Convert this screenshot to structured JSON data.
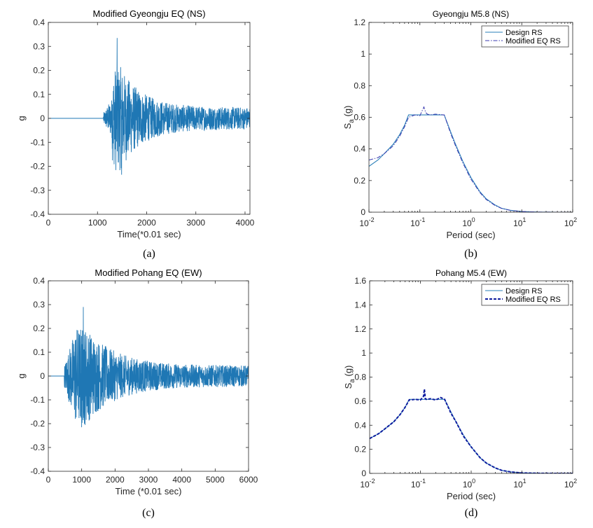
{
  "colors": {
    "signal": "#1f77b4",
    "design": "#2a7fb8",
    "modified_b": "#3b3bb0",
    "modified_d": "#0d1a9e",
    "axis": "#262626"
  },
  "chart_data": [
    {
      "id": "a",
      "type": "line",
      "title": "Modified Gyeongju EQ (NS)",
      "xlabel": "Time(*0.01 sec)",
      "ylabel": "g",
      "caption": "(a)",
      "xlim": [
        0,
        4100
      ],
      "ylim": [
        -0.4,
        0.4
      ],
      "xticks": [
        0,
        1000,
        2000,
        3000,
        4000
      ],
      "xtick_labels": [
        "0",
        "1000",
        "2000",
        "3000",
        "4000"
      ],
      "yticks": [
        -0.4,
        -0.3,
        -0.2,
        -0.1,
        0,
        0.1,
        0.2,
        0.3,
        0.4
      ],
      "ytick_labels": [
        "-0.4",
        "-0.3",
        "-0.2",
        "-0.1",
        "0",
        "0.1",
        "0.2",
        "0.3",
        "0.4"
      ],
      "signal": {
        "start": 1120,
        "end": 4100,
        "peak_pos": 0.335,
        "peak_neg": -0.235,
        "peak_time": 1400,
        "peak_neg_time": 1490
      }
    },
    {
      "id": "b",
      "type": "line",
      "title": "Gyeongju M5.8 (NS)",
      "xlabel": "Period (sec)",
      "ylabel": "S_a (g)",
      "caption": "(b)",
      "xscale": "log",
      "xlim": [
        0.01,
        100
      ],
      "ylim": [
        0,
        1.2
      ],
      "xticks": [
        0.01,
        0.1,
        1,
        10,
        100
      ],
      "xtick_labels": [
        [
          "10",
          "-2"
        ],
        [
          "10",
          "-1"
        ],
        [
          "10",
          "0"
        ],
        [
          "10",
          "1"
        ],
        [
          "10",
          "2"
        ]
      ],
      "yticks": [
        0,
        0.2,
        0.4,
        0.6,
        0.8,
        1,
        1.2
      ],
      "ytick_labels": [
        "0",
        "0.2",
        "0.4",
        "0.6",
        "0.8",
        "1",
        "1.2"
      ],
      "legend_position": "top-right",
      "series": [
        {
          "name": "Design RS",
          "style": "solid",
          "x": [
            0.01,
            0.015,
            0.02,
            0.03,
            0.04,
            0.05,
            0.06,
            0.3,
            0.4,
            0.5,
            0.7,
            1.0,
            1.5,
            2.0,
            3.0,
            4.0,
            6.0,
            10,
            20,
            50,
            100
          ],
          "y": [
            0.29,
            0.33,
            0.37,
            0.43,
            0.49,
            0.55,
            0.615,
            0.615,
            0.51,
            0.43,
            0.32,
            0.22,
            0.13,
            0.085,
            0.045,
            0.025,
            0.012,
            0.004,
            0.001,
            0,
            0
          ]
        },
        {
          "name": "Modified EQ RS",
          "style": "dashdot",
          "x": [
            0.01,
            0.015,
            0.02,
            0.03,
            0.04,
            0.05,
            0.06,
            0.08,
            0.1,
            0.11,
            0.12,
            0.13,
            0.14,
            0.16,
            0.2,
            0.3,
            0.4,
            0.5,
            0.7,
            1.0,
            1.5,
            2.0,
            3.0,
            4.0,
            6.0,
            10,
            20,
            50,
            100
          ],
          "y": [
            0.33,
            0.345,
            0.37,
            0.42,
            0.48,
            0.54,
            0.6,
            0.615,
            0.61,
            0.64,
            0.665,
            0.63,
            0.62,
            0.615,
            0.62,
            0.615,
            0.5,
            0.42,
            0.31,
            0.21,
            0.125,
            0.08,
            0.042,
            0.024,
            0.011,
            0.004,
            0.001,
            0,
            0
          ]
        }
      ]
    },
    {
      "id": "c",
      "type": "line",
      "title": "Modified Pohang EQ (EW)",
      "xlabel": "Time (*0.01 sec)",
      "ylabel": "g",
      "caption": "(c)",
      "xlim": [
        0,
        6000
      ],
      "ylim": [
        -0.4,
        0.4
      ],
      "xticks": [
        0,
        1000,
        2000,
        3000,
        4000,
        5000,
        6000
      ],
      "xtick_labels": [
        "0",
        "1000",
        "2000",
        "3000",
        "4000",
        "5000",
        "6000"
      ],
      "yticks": [
        -0.4,
        -0.3,
        -0.2,
        -0.1,
        0,
        0.1,
        0.2,
        0.3,
        0.4
      ],
      "ytick_labels": [
        "-0.4",
        "-0.3",
        "-0.2",
        "-0.1",
        "0",
        "0.1",
        "0.2",
        "0.3",
        "0.4"
      ],
      "signal": {
        "start": 480,
        "end": 6000,
        "peak_pos": 0.29,
        "peak_neg": -0.215,
        "peak_time": 1050,
        "peak_neg_time": 1000
      }
    },
    {
      "id": "d",
      "type": "line",
      "title": "Pohang M5.4 (EW)",
      "xlabel": "Period (sec)",
      "ylabel": "S_a (g)",
      "caption": "(d)",
      "xscale": "log",
      "xlim": [
        0.01,
        100
      ],
      "ylim": [
        0,
        1.6
      ],
      "xticks": [
        0.01,
        0.1,
        1,
        10,
        100
      ],
      "xtick_labels": [
        [
          "10",
          "-2"
        ],
        [
          "10",
          "-1"
        ],
        [
          "10",
          "0"
        ],
        [
          "10",
          "1"
        ],
        [
          "10",
          "2"
        ]
      ],
      "yticks": [
        0,
        0.2,
        0.4,
        0.6,
        0.8,
        1,
        1.2,
        1.4,
        1.6
      ],
      "ytick_labels": [
        "0",
        "0.2",
        "0.4",
        "0.6",
        "0.8",
        "1",
        "1.2",
        "1.4",
        "1.6"
      ],
      "legend_position": "top-right",
      "series": [
        {
          "name": "Design RS",
          "style": "solid",
          "x": [
            0.01,
            0.015,
            0.02,
            0.03,
            0.04,
            0.05,
            0.06,
            0.3,
            0.4,
            0.5,
            0.7,
            1.0,
            1.5,
            2.0,
            3.0,
            4.0,
            6.0,
            10,
            20,
            50,
            100
          ],
          "y": [
            0.29,
            0.33,
            0.37,
            0.43,
            0.49,
            0.55,
            0.615,
            0.615,
            0.51,
            0.43,
            0.32,
            0.22,
            0.13,
            0.085,
            0.045,
            0.025,
            0.012,
            0.004,
            0.001,
            0,
            0
          ]
        },
        {
          "name": "Modified EQ RS",
          "style": "dashed",
          "x": [
            0.01,
            0.015,
            0.02,
            0.03,
            0.04,
            0.05,
            0.06,
            0.08,
            0.1,
            0.115,
            0.12,
            0.125,
            0.13,
            0.16,
            0.2,
            0.25,
            0.3,
            0.4,
            0.5,
            0.7,
            1.0,
            1.5,
            2.0,
            3.0,
            4.0,
            6.0,
            10,
            20,
            50,
            100
          ],
          "y": [
            0.29,
            0.33,
            0.37,
            0.43,
            0.49,
            0.55,
            0.61,
            0.615,
            0.61,
            0.64,
            0.7,
            0.62,
            0.615,
            0.62,
            0.61,
            0.63,
            0.615,
            0.5,
            0.43,
            0.31,
            0.22,
            0.13,
            0.085,
            0.045,
            0.025,
            0.012,
            0.004,
            0.001,
            0,
            0
          ]
        }
      ]
    }
  ]
}
